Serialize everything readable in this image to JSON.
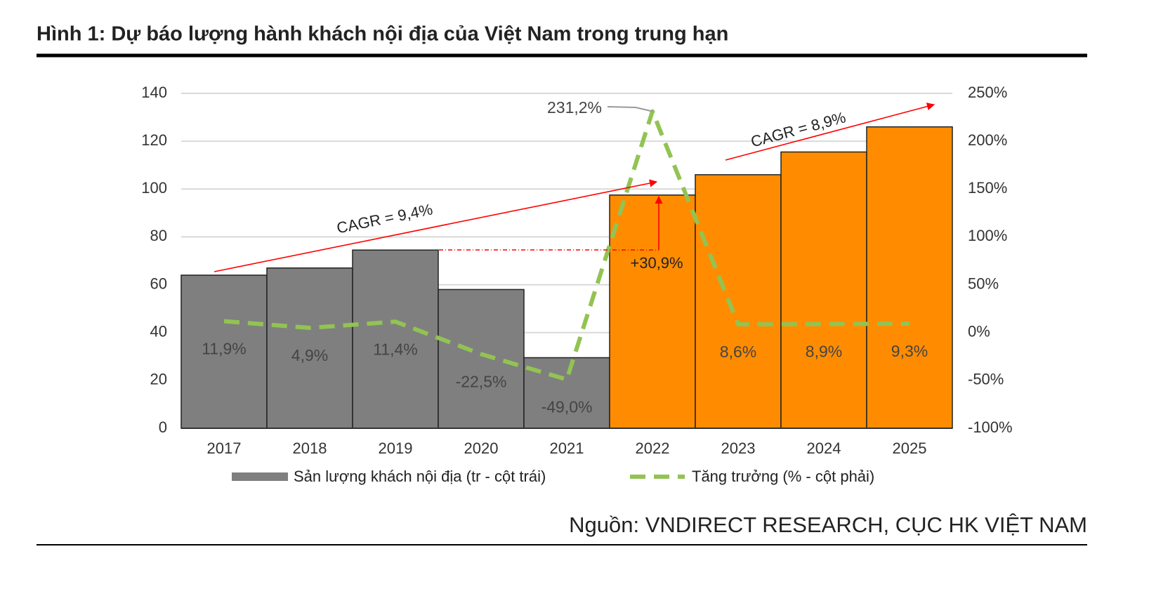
{
  "chart_data": {
    "type": "bar-line",
    "title": "Hình 1: Dự báo lượng hành khách nội địa của Việt Nam trong trung hạn",
    "source": "Nguồn: VNDIRECT RESEARCH, CỤC HK VIỆT NAM",
    "categories": [
      "2017",
      "2018",
      "2019",
      "2020",
      "2021",
      "2022",
      "2023",
      "2024",
      "2025"
    ],
    "series": [
      {
        "name": "Sản lượng khách nội địa (tr - cột trái)",
        "type": "bar",
        "color": "#7f7f7f",
        "colors": [
          "#7f7f7f",
          "#7f7f7f",
          "#7f7f7f",
          "#7f7f7f",
          "#7f7f7f",
          "#ff8c00",
          "#ff8c00",
          "#ff8c00",
          "#ff8c00"
        ],
        "values": [
          64,
          67,
          74.5,
          58,
          29.5,
          97.5,
          106,
          115.5,
          126
        ]
      },
      {
        "name": "Tăng trưởng (% - cột phải)",
        "type": "line",
        "axis": "y2",
        "color": "#92c353",
        "dashed": true,
        "values": [
          11.9,
          4.9,
          11.4,
          -22.5,
          -49.0,
          231.2,
          8.6,
          8.9,
          9.3
        ],
        "value_labels": [
          "11,9%",
          "4,9%",
          "11,4%",
          "-22,5%",
          "-49,0%",
          "231,2%",
          "8,6%",
          "8,9%",
          "9,3%"
        ]
      }
    ],
    "ylim": [
      0,
      140
    ],
    "yticks": [
      0,
      20,
      40,
      60,
      80,
      100,
      120,
      140
    ],
    "y2lim": [
      -100,
      250
    ],
    "y2ticks": [
      {
        "value": -100,
        "label": "-100%"
      },
      {
        "value": -50,
        "label": "-50%"
      },
      {
        "value": 0,
        "label": "0%"
      },
      {
        "value": 50,
        "label": "50%"
      },
      {
        "value": 100,
        "label": "100%"
      },
      {
        "value": 150,
        "label": "150%"
      },
      {
        "value": 200,
        "label": "200%"
      },
      {
        "value": 250,
        "label": "250%"
      }
    ],
    "grid": true,
    "legend": "bottom",
    "annotations": [
      "CAGR = 9,4%",
      "CAGR = 8,9%",
      "+30,9%"
    ]
  }
}
